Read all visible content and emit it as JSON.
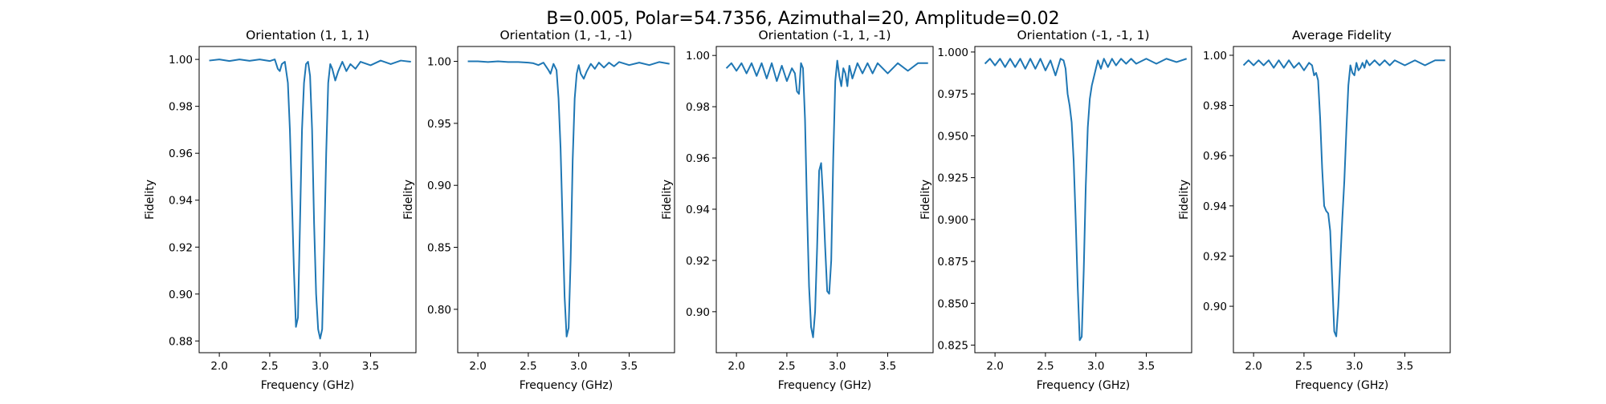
{
  "figure": {
    "suptitle": "B=0.005, Polar=54.7356, Azimuthal=20, Amplitude=0.02",
    "line_color": "#1f77b4"
  },
  "chart_data": [
    {
      "type": "line",
      "title": "Orientation (1, 1, 1)",
      "xlabel": "Frequency (GHz)",
      "ylabel": "Fidelity",
      "xlim": [
        1.8,
        3.95
      ],
      "ylim": [
        0.875,
        1.0055
      ],
      "xticks": [
        "2.0",
        "2.5",
        "3.0",
        "3.5"
      ],
      "yticks": [
        "0.88",
        "0.90",
        "0.92",
        "0.94",
        "0.96",
        "0.98",
        "1.00"
      ],
      "grid": false,
      "series": [
        {
          "x": [
            1.9,
            2.0,
            2.1,
            2.2,
            2.3,
            2.4,
            2.5,
            2.55,
            2.58,
            2.6,
            2.62,
            2.65,
            2.68,
            2.7,
            2.72,
            2.74,
            2.76,
            2.78,
            2.8,
            2.82,
            2.84,
            2.86,
            2.88,
            2.9,
            2.92,
            2.94,
            2.96,
            2.98,
            3.0,
            3.02,
            3.04,
            3.06,
            3.08,
            3.1,
            3.12,
            3.15,
            3.18,
            3.22,
            3.26,
            3.3,
            3.35,
            3.4,
            3.5,
            3.6,
            3.7,
            3.8,
            3.9
          ],
          "y": [
            0.9995,
            1.0,
            0.9993,
            1.0,
            0.9994,
            1.0,
            0.9993,
            1.0,
            0.996,
            0.995,
            0.998,
            0.999,
            0.99,
            0.97,
            0.94,
            0.91,
            0.886,
            0.89,
            0.93,
            0.97,
            0.99,
            0.998,
            0.999,
            0.993,
            0.97,
            0.93,
            0.9,
            0.885,
            0.881,
            0.885,
            0.92,
            0.96,
            0.99,
            0.998,
            0.996,
            0.991,
            0.995,
            0.999,
            0.995,
            0.998,
            0.996,
            0.999,
            0.9975,
            0.9995,
            0.998,
            0.9995,
            0.999
          ]
        }
      ]
    },
    {
      "type": "line",
      "title": "Orientation (1, -1, -1)",
      "xlabel": "Frequency (GHz)",
      "ylabel": "Fidelity",
      "xlim": [
        1.8,
        3.95
      ],
      "ylim": [
        0.765,
        1.012
      ],
      "xticks": [
        "2.0",
        "2.5",
        "3.0",
        "3.5"
      ],
      "yticks": [
        "0.80",
        "0.85",
        "0.90",
        "0.95",
        "1.00"
      ],
      "grid": false,
      "series": [
        {
          "x": [
            1.9,
            2.0,
            2.1,
            2.2,
            2.3,
            2.4,
            2.5,
            2.55,
            2.6,
            2.65,
            2.7,
            2.72,
            2.75,
            2.78,
            2.8,
            2.82,
            2.84,
            2.86,
            2.88,
            2.9,
            2.92,
            2.94,
            2.96,
            2.98,
            3.0,
            3.02,
            3.05,
            3.08,
            3.12,
            3.16,
            3.2,
            3.25,
            3.3,
            3.35,
            3.4,
            3.5,
            3.6,
            3.7,
            3.8,
            3.9
          ],
          "y": [
            1.0,
            1.0,
            0.9995,
            1.0,
            0.9995,
            0.9995,
            0.999,
            0.9985,
            0.997,
            0.999,
            0.993,
            0.99,
            0.998,
            0.993,
            0.97,
            0.93,
            0.87,
            0.81,
            0.778,
            0.785,
            0.84,
            0.92,
            0.97,
            0.99,
            0.997,
            0.99,
            0.986,
            0.992,
            0.998,
            0.994,
            0.999,
            0.995,
            0.999,
            0.996,
            0.9995,
            0.997,
            0.999,
            0.997,
            0.9995,
            0.998
          ]
        }
      ]
    },
    {
      "type": "line",
      "title": "Orientation (-1, 1, -1)",
      "xlabel": "Frequency (GHz)",
      "ylabel": "Fidelity",
      "xlim": [
        1.8,
        3.95
      ],
      "ylim": [
        0.884,
        1.0035
      ],
      "xticks": [
        "2.0",
        "2.5",
        "3.0",
        "3.5"
      ],
      "yticks": [
        "0.90",
        "0.92",
        "0.94",
        "0.96",
        "0.98",
        "1.00"
      ],
      "grid": false,
      "series": [
        {
          "x": [
            1.9,
            1.95,
            2.0,
            2.05,
            2.1,
            2.15,
            2.2,
            2.25,
            2.3,
            2.35,
            2.4,
            2.45,
            2.5,
            2.55,
            2.58,
            2.6,
            2.62,
            2.64,
            2.66,
            2.68,
            2.7,
            2.72,
            2.74,
            2.76,
            2.78,
            2.8,
            2.82,
            2.84,
            2.86,
            2.88,
            2.9,
            2.92,
            2.94,
            2.96,
            2.98,
            3.0,
            3.02,
            3.04,
            3.06,
            3.08,
            3.1,
            3.12,
            3.15,
            3.2,
            3.25,
            3.3,
            3.35,
            3.4,
            3.5,
            3.6,
            3.7,
            3.8,
            3.9
          ],
          "y": [
            0.995,
            0.997,
            0.994,
            0.997,
            0.993,
            0.997,
            0.992,
            0.997,
            0.991,
            0.997,
            0.99,
            0.996,
            0.99,
            0.995,
            0.993,
            0.986,
            0.985,
            0.997,
            0.995,
            0.975,
            0.94,
            0.91,
            0.894,
            0.89,
            0.9,
            0.925,
            0.955,
            0.958,
            0.944,
            0.925,
            0.908,
            0.907,
            0.92,
            0.96,
            0.99,
            0.998,
            0.992,
            0.988,
            0.995,
            0.993,
            0.988,
            0.996,
            0.991,
            0.997,
            0.993,
            0.997,
            0.993,
            0.997,
            0.993,
            0.997,
            0.994,
            0.997,
            0.997
          ]
        }
      ]
    },
    {
      "type": "line",
      "title": "Orientation (-1, -1, 1)",
      "xlabel": "Frequency (GHz)",
      "ylabel": "Fidelity",
      "xlim": [
        1.8,
        3.95
      ],
      "ylim": [
        0.8205,
        1.0033
      ],
      "xticks": [
        "2.0",
        "2.5",
        "3.0",
        "3.5"
      ],
      "yticks": [
        "0.825",
        "0.850",
        "0.875",
        "0.900",
        "0.925",
        "0.950",
        "0.975",
        "1.000"
      ],
      "grid": false,
      "series": [
        {
          "x": [
            1.9,
            1.95,
            2.0,
            2.05,
            2.1,
            2.15,
            2.2,
            2.25,
            2.3,
            2.35,
            2.4,
            2.45,
            2.5,
            2.55,
            2.6,
            2.65,
            2.68,
            2.7,
            2.72,
            2.74,
            2.76,
            2.78,
            2.8,
            2.82,
            2.84,
            2.86,
            2.88,
            2.9,
            2.92,
            2.94,
            2.96,
            2.98,
            3.0,
            3.02,
            3.05,
            3.08,
            3.12,
            3.16,
            3.2,
            3.25,
            3.3,
            3.35,
            3.4,
            3.5,
            3.6,
            3.7,
            3.8,
            3.9
          ],
          "y": [
            0.993,
            0.996,
            0.992,
            0.996,
            0.991,
            0.996,
            0.991,
            0.996,
            0.99,
            0.996,
            0.99,
            0.996,
            0.989,
            0.995,
            0.986,
            0.996,
            0.995,
            0.99,
            0.975,
            0.968,
            0.958,
            0.935,
            0.9,
            0.86,
            0.828,
            0.83,
            0.87,
            0.92,
            0.955,
            0.972,
            0.98,
            0.985,
            0.99,
            0.995,
            0.99,
            0.996,
            0.991,
            0.996,
            0.992,
            0.996,
            0.993,
            0.996,
            0.993,
            0.996,
            0.993,
            0.996,
            0.994,
            0.996
          ]
        }
      ]
    },
    {
      "type": "line",
      "title": "Average Fidelity",
      "xlabel": "Frequency (GHz)",
      "ylabel": "Fidelity",
      "xlim": [
        1.8,
        3.95
      ],
      "ylim": [
        0.8815,
        1.0035
      ],
      "xticks": [
        "2.0",
        "2.5",
        "3.0",
        "3.5"
      ],
      "yticks": [
        "0.90",
        "0.92",
        "0.94",
        "0.96",
        "0.98",
        "1.00"
      ],
      "grid": false,
      "series": [
        {
          "x": [
            1.9,
            1.95,
            2.0,
            2.05,
            2.1,
            2.15,
            2.2,
            2.25,
            2.3,
            2.35,
            2.4,
            2.45,
            2.5,
            2.55,
            2.58,
            2.6,
            2.62,
            2.64,
            2.66,
            2.68,
            2.7,
            2.72,
            2.74,
            2.76,
            2.78,
            2.8,
            2.82,
            2.84,
            2.86,
            2.88,
            2.9,
            2.92,
            2.94,
            2.96,
            2.98,
            3.0,
            3.02,
            3.04,
            3.06,
            3.08,
            3.1,
            3.12,
            3.15,
            3.2,
            3.25,
            3.3,
            3.35,
            3.4,
            3.5,
            3.6,
            3.7,
            3.8,
            3.9
          ],
          "y": [
            0.996,
            0.998,
            0.996,
            0.998,
            0.996,
            0.998,
            0.995,
            0.998,
            0.995,
            0.998,
            0.995,
            0.997,
            0.994,
            0.997,
            0.996,
            0.992,
            0.993,
            0.99,
            0.975,
            0.955,
            0.94,
            0.938,
            0.937,
            0.93,
            0.91,
            0.89,
            0.888,
            0.9,
            0.918,
            0.935,
            0.95,
            0.97,
            0.988,
            0.996,
            0.993,
            0.992,
            0.997,
            0.994,
            0.995,
            0.997,
            0.995,
            0.998,
            0.996,
            0.998,
            0.996,
            0.998,
            0.996,
            0.998,
            0.996,
            0.998,
            0.996,
            0.998,
            0.998
          ]
        }
      ]
    }
  ]
}
